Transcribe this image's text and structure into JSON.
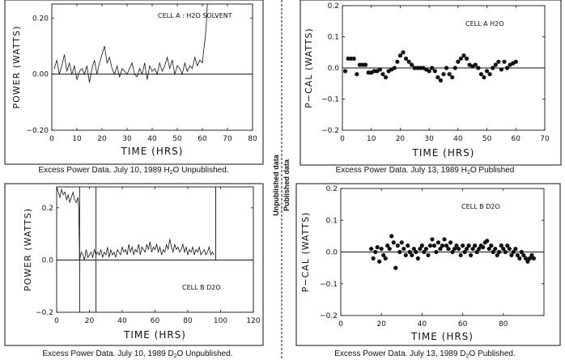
{
  "divider": {
    "labels": [
      "Unpublished data",
      "Published data"
    ]
  },
  "panels": [
    {
      "caption": {
        "pre": "Excess Power Data. July 10, 1989  H",
        "sub": "2",
        "post": "O Unpublished."
      },
      "chart_data": {
        "type": "line",
        "annotation": "CELL A  :   H2O SOLVENT",
        "xlabel": "TIME  (HRS)",
        "ylabel": "POWER  (WATTS)",
        "xlim": [
          0,
          80
        ],
        "ylim": [
          -0.2,
          0.25
        ],
        "xticks": [
          0,
          10,
          20,
          30,
          40,
          50,
          60,
          70,
          80
        ],
        "yticks": [
          -0.2,
          0.0,
          0.2
        ],
        "ytick_labels": [
          "−0.20",
          "0.00",
          "0.20"
        ],
        "baseline_y": 0,
        "series": [
          {
            "x": [
              1,
              2,
              3,
              4,
              5,
              6,
              7,
              8,
              9,
              10,
              11,
              12,
              13,
              14,
              15,
              16,
              17,
              18,
              19,
              20,
              21,
              22,
              23,
              24,
              25,
              26,
              27,
              28,
              29,
              30,
              31,
              32,
              33,
              34,
              35,
              36,
              37,
              38,
              39,
              40,
              41,
              42,
              43,
              44,
              45,
              46,
              47,
              48,
              49,
              50,
              51,
              52,
              53,
              54,
              55,
              56,
              57,
              58,
              59,
              60,
              60.5,
              61,
              61.5,
              62
            ],
            "values": [
              0.02,
              0.05,
              0.0,
              0.03,
              0.07,
              0.01,
              0.04,
              0.0,
              0.03,
              -0.02,
              0.01,
              0.02,
              0.0,
              0.03,
              -0.03,
              0.02,
              0.05,
              0.0,
              0.04,
              0.07,
              0.1,
              0.04,
              0.06,
              0.02,
              0.0,
              0.03,
              -0.01,
              0.02,
              0.01,
              0.0,
              0.02,
              0.04,
              0.0,
              -0.01,
              0.02,
              0.0,
              0.04,
              -0.02,
              0.03,
              0.01,
              0.02,
              0.0,
              0.04,
              0.01,
              0.03,
              0.06,
              0.02,
              0.05,
              0.0,
              0.03,
              0.02,
              0.0,
              0.04,
              0.01,
              0.03,
              0.02,
              0.06,
              0.03,
              0.05,
              0.04,
              0.08,
              0.12,
              0.17,
              0.25
            ]
          }
        ]
      }
    },
    {
      "caption": {
        "pre": "Excess Power Data. July 13, 1989  H",
        "sub": "2",
        "post": "O Published"
      },
      "chart_data": {
        "type": "scatter",
        "annotation": "CELL A     H2O",
        "xlabel": "TIME  (HRS)",
        "ylabel": "P−CAL  (WATTS)",
        "xlim": [
          0,
          70
        ],
        "ylim": [
          -0.2,
          0.2
        ],
        "xticks": [
          0,
          10,
          20,
          30,
          40,
          50,
          60,
          70
        ],
        "yticks": [
          -0.2,
          -0.1,
          0.0,
          0.1,
          0.2
        ],
        "ytick_labels": [
          "−0.2",
          "−0.1",
          "0.0",
          "0.1",
          "0.2"
        ],
        "baseline_y": 0,
        "series": [
          {
            "x": [
              1,
              2,
              3,
              4,
              5,
              6,
              7,
              8,
              9,
              10,
              11,
              12,
              13,
              14,
              15,
              16,
              17,
              18,
              19,
              20,
              21,
              22,
              23,
              24,
              25,
              26,
              27,
              28,
              29,
              30,
              31,
              32,
              33,
              34,
              35,
              36,
              37,
              38,
              39,
              40,
              41,
              42,
              43,
              44,
              45,
              46,
              47,
              48,
              49,
              50,
              51,
              52,
              53,
              54,
              55,
              56,
              57,
              58,
              59,
              60
            ],
            "values": [
              -0.01,
              0.03,
              0.03,
              0.03,
              -0.02,
              0.01,
              0.01,
              0.01,
              -0.015,
              -0.015,
              -0.01,
              -0.01,
              -0.005,
              -0.02,
              -0.03,
              -0.01,
              -0.005,
              0.0,
              0.02,
              0.04,
              0.05,
              0.03,
              0.02,
              0.01,
              0.0,
              0.0,
              0.0,
              0.0,
              -0.005,
              -0.01,
              0.0,
              -0.01,
              -0.03,
              -0.04,
              -0.02,
              0.0,
              -0.02,
              -0.03,
              0.0,
              0.02,
              0.03,
              0.04,
              0.03,
              0.01,
              0.005,
              0.01,
              0.0,
              -0.02,
              -0.03,
              -0.01,
              -0.02,
              0.0,
              0.01,
              0.02,
              -0.005,
              0.02,
              0.0,
              0.01,
              0.015,
              0.02
            ]
          }
        ]
      }
    },
    {
      "caption": {
        "pre": "Excess Power Data. July 10, 1989  D",
        "sub": "2",
        "post": "O Unpublished."
      },
      "chart_data": {
        "type": "line",
        "annotation": "CELL B  D2O",
        "xlabel": "TIME  (HRS)",
        "ylabel": "POWER  (WATTS)",
        "xlim": [
          0,
          120
        ],
        "ylim": [
          -0.2,
          0.28
        ],
        "xticks": [
          0,
          20,
          40,
          60,
          80,
          100,
          120
        ],
        "yticks": [
          -0.2,
          0.0,
          0.2
        ],
        "ytick_labels": [
          "−0.2",
          "0.0",
          "0.2"
        ],
        "baseline_y": 0,
        "vlines": [
          {
            "x": 14,
            "y0": -0.2,
            "y1": 0.28
          },
          {
            "x": 24,
            "y0": -0.2,
            "y1": 0.28
          },
          {
            "x": 97,
            "y0": 0.0,
            "y1": 0.28
          }
        ],
        "series": [
          {
            "x": [
              0,
              1,
              2,
              3,
              4,
              5,
              6,
              7,
              8,
              9,
              10,
              11,
              12,
              13,
              13.5,
              14,
              15,
              16,
              17,
              18,
              19,
              20,
              21,
              22,
              23,
              24,
              25,
              26,
              27,
              28,
              29,
              30,
              31,
              32,
              33,
              34,
              35,
              36,
              37,
              38,
              39,
              40,
              41,
              42,
              43,
              44,
              45,
              46,
              47,
              48,
              49,
              50,
              51,
              52,
              53,
              54,
              55,
              56,
              57,
              58,
              59,
              60,
              61,
              62,
              63,
              64,
              65,
              66,
              67,
              68,
              69,
              70,
              71,
              72,
              73,
              74,
              75,
              76,
              77,
              78,
              79,
              80,
              81,
              82,
              83,
              84,
              85,
              86,
              87,
              88,
              89,
              90,
              91,
              92,
              93,
              94,
              95,
              96
            ],
            "values": [
              0.28,
              0.26,
              0.24,
              0.27,
              0.25,
              0.26,
              0.23,
              0.25,
              0.22,
              0.24,
              0.26,
              0.23,
              0.22,
              0.24,
              0.2,
              0.0,
              0.03,
              0.02,
              0.0,
              0.04,
              0.01,
              0.02,
              0.03,
              0.01,
              0.04,
              0.02,
              0.03,
              0.02,
              0.04,
              0.01,
              0.03,
              0.02,
              0.05,
              0.01,
              0.04,
              0.02,
              0.03,
              0.01,
              0.04,
              0.03,
              0.02,
              0.05,
              0.03,
              0.04,
              0.02,
              0.06,
              0.03,
              0.05,
              0.02,
              0.04,
              0.03,
              0.06,
              0.02,
              0.05,
              0.04,
              0.03,
              0.06,
              0.04,
              0.07,
              0.03,
              0.05,
              0.04,
              0.06,
              0.03,
              0.05,
              0.02,
              0.04,
              0.03,
              0.06,
              0.04,
              0.08,
              0.05,
              0.03,
              0.06,
              0.04,
              0.05,
              0.03,
              0.04,
              0.06,
              0.03,
              0.05,
              0.02,
              0.04,
              0.03,
              0.05,
              0.02,
              0.04,
              0.03,
              0.05,
              0.02,
              0.03,
              0.04,
              0.02,
              0.03,
              0.05,
              0.02,
              0.03,
              0.02
            ]
          }
        ]
      }
    },
    {
      "caption": {
        "pre": "Excess Power Data. July 13, 1989  D",
        "sub": "2",
        "post": "O Published."
      },
      "chart_data": {
        "type": "scatter",
        "annotation": "CELL B   D2O",
        "xlabel": "TIME  (HRS)",
        "ylabel": "P−CAL  (WATTS)",
        "xlim": [
          0,
          100
        ],
        "ylim": [
          -0.2,
          0.2
        ],
        "xticks": [
          0,
          20,
          40,
          60,
          80
        ],
        "yticks": [
          -0.2,
          -0.1,
          0.0,
          0.1,
          0.2
        ],
        "ytick_labels": [
          "−0.2",
          "−0.1",
          "0.0",
          "0.1",
          "0.2"
        ],
        "baseline_y": 0,
        "series": [
          {
            "x": [
              15,
              16,
              17,
              18,
              19,
              20,
              21,
              22,
              23,
              24,
              25,
              26,
              27,
              28,
              29,
              30,
              31,
              32,
              33,
              34,
              35,
              36,
              37,
              38,
              39,
              40,
              41,
              42,
              43,
              44,
              45,
              46,
              47,
              48,
              49,
              50,
              51,
              52,
              53,
              54,
              55,
              56,
              57,
              58,
              59,
              60,
              61,
              62,
              63,
              64,
              65,
              66,
              67,
              68,
              69,
              70,
              71,
              72,
              73,
              74,
              75,
              76,
              77,
              78,
              79,
              80,
              81,
              82,
              83,
              84,
              85,
              86,
              87,
              88,
              89,
              90,
              91,
              92,
              93,
              94,
              95
            ],
            "values": [
              0.01,
              -0.02,
              0.0,
              0.015,
              -0.03,
              0.01,
              -0.01,
              -0.02,
              0.02,
              0.01,
              0.05,
              0.03,
              -0.05,
              0.02,
              0.0,
              0.03,
              0.01,
              -0.01,
              0.02,
              0.0,
              -0.01,
              0.01,
              0.0,
              -0.02,
              0.01,
              0.02,
              0.0,
              0.01,
              -0.01,
              0.02,
              0.04,
              0.02,
              0.0,
              0.03,
              0.01,
              0.02,
              0.04,
              0.02,
              0.01,
              0.03,
              0.0,
              0.01,
              0.02,
              0.01,
              -0.01,
              0.02,
              0.0,
              0.01,
              0.02,
              -0.01,
              0.01,
              0.02,
              0.0,
              0.01,
              0.02,
              0.015,
              0.03,
              0.035,
              0.01,
              0.02,
              0.0,
              0.01,
              -0.01,
              0.0,
              0.02,
              0.01,
              0.0,
              0.02,
              0.01,
              -0.01,
              0.0,
              0.01,
              -0.01,
              -0.02,
              0.0,
              -0.01,
              -0.02,
              -0.03,
              -0.02,
              -0.01,
              -0.02
            ]
          }
        ]
      }
    }
  ]
}
